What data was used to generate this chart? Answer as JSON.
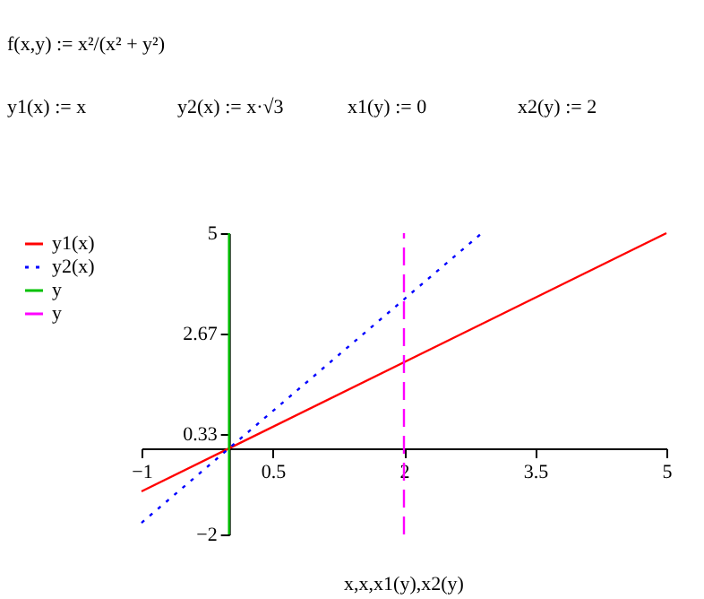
{
  "chart_data": {
    "type": "line",
    "xlabel": "x,x,x1(y),x2(y)",
    "annotations": [
      "f(x,y) := x²/(x² + y²)",
      "y1(x) := x",
      "y2(x) := x·√3",
      "x1(y) := 0",
      "x2(y) := 2"
    ],
    "series": [
      {
        "name": "y1(x)",
        "color": "#ff0000",
        "x": [
          -1,
          5
        ],
        "values": [
          -1,
          5
        ],
        "line_style": "solid"
      },
      {
        "name": "y2(x)",
        "color": "#0000ff",
        "x": [
          -1,
          2.89
        ],
        "values": [
          -1.73,
          5
        ],
        "line_style": "dotted"
      },
      {
        "name": "y",
        "color": "#00c000",
        "x": [
          0,
          0
        ],
        "values": [
          -2,
          5
        ],
        "line_style": "solid"
      },
      {
        "name": "y",
        "color": "#ff00ff",
        "x": [
          2,
          2
        ],
        "values": [
          -2,
          5
        ],
        "line_style": "dashed"
      }
    ],
    "xlim": [
      -1,
      5
    ],
    "ylim": [
      -2,
      5
    ],
    "xticks": [
      -1,
      0.5,
      2,
      3.5,
      5
    ],
    "yticks": [
      -2,
      0.33,
      2.67,
      5
    ],
    "grid": false,
    "legend": "left"
  }
}
